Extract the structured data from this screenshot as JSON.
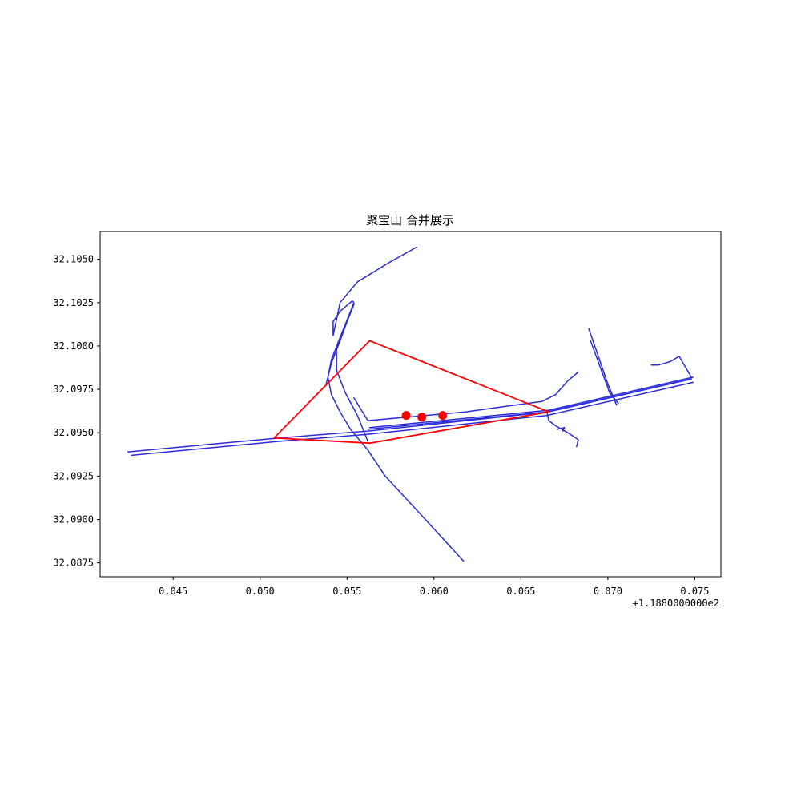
{
  "chart_data": {
    "type": "line",
    "title": "聚宝山 合并展示",
    "xlabel": "",
    "ylabel": "",
    "x_offset_label": "+1.1880000000e2",
    "xlim": [
      118.8408,
      118.8765
    ],
    "ylim": [
      32.0867,
      32.1066
    ],
    "x_ticks": [
      118.845,
      118.85,
      118.855,
      118.86,
      118.865,
      118.87,
      118.875
    ],
    "x_tick_labels": [
      "0.045",
      "0.050",
      "0.055",
      "0.060",
      "0.065",
      "0.070",
      "0.075"
    ],
    "y_ticks": [
      32.0875,
      32.09,
      32.0925,
      32.095,
      32.0975,
      32.1,
      32.1025,
      32.105
    ],
    "y_tick_labels": [
      "32.0875",
      "32.0900",
      "32.0925",
      "32.0950",
      "32.0975",
      "32.1000",
      "32.1025",
      "32.1050"
    ],
    "grid": false,
    "colors": {
      "roads": "#2b2bdd",
      "polygon": "#ff0000",
      "points": "#ff0000"
    },
    "roads": [
      {
        "x": [
          118.8424,
          118.8511,
          118.8562,
          118.8666,
          118.8748
        ],
        "y": [
          32.0939,
          32.0947,
          32.0951,
          32.0962,
          32.0981
        ]
      },
      {
        "x": [
          118.8426,
          118.851,
          118.8561,
          118.8665,
          118.8749
        ],
        "y": [
          32.0937,
          32.0945,
          32.0949,
          32.096,
          32.0979
        ]
      },
      {
        "x": [
          118.8563,
          118.8666,
          118.8749
        ],
        "y": [
          32.0953,
          32.0963,
          32.0982
        ]
      },
      {
        "x": [
          118.8562,
          118.8665,
          118.8748
        ],
        "y": [
          32.0952,
          32.0962,
          32.0981
        ]
      },
      {
        "x": [
          118.8617,
          118.8595,
          118.8572,
          118.8562,
          118.8552,
          118.8546,
          118.8541,
          118.8539,
          118.8541,
          118.8546,
          118.855,
          118.8554,
          118.8553,
          118.8546,
          118.8542,
          118.8542,
          118.8546,
          118.8556,
          118.8574,
          118.859
        ],
        "y": [
          32.0876,
          32.09,
          32.0925,
          32.094,
          32.0952,
          32.0962,
          32.0972,
          32.0982,
          32.0992,
          32.1005,
          32.1015,
          32.1025,
          32.1026,
          32.102,
          32.1014,
          32.1006,
          32.1025,
          32.1037,
          32.1048,
          32.1057
        ]
      },
      {
        "x": [
          118.8538,
          118.8541,
          118.8546,
          118.855,
          118.8554,
          118.8548,
          118.8544,
          118.8544,
          118.8549,
          118.8556,
          118.8562
        ],
        "y": [
          32.0978,
          32.099,
          32.1003,
          32.1014,
          32.1024,
          32.1009,
          32.0998,
          32.0986,
          32.0973,
          32.096,
          32.0945
        ]
      },
      {
        "x": [
          118.8554,
          118.8562,
          118.8618,
          118.8647,
          118.8662,
          118.867,
          118.8677,
          118.8683
        ],
        "y": [
          32.097,
          32.0957,
          32.0962,
          32.0966,
          32.0968,
          32.0972,
          32.098,
          32.0985
        ]
      },
      {
        "x": [
          118.8665,
          118.8666,
          118.867,
          118.8677,
          118.8683,
          118.8682
        ],
        "y": [
          32.0962,
          32.0957,
          32.0954,
          32.095,
          32.0946,
          32.0942
        ]
      },
      {
        "x": [
          118.8671,
          118.8675,
          118.8674
        ],
        "y": [
          32.0952,
          32.0953,
          32.0951
        ]
      },
      {
        "x": [
          118.8689,
          118.87,
          118.8705
        ],
        "y": [
          32.101,
          32.0978,
          32.0966
        ]
      },
      {
        "x": [
          118.869,
          118.8701,
          118.8706
        ],
        "y": [
          32.1003,
          32.0973,
          32.0967
        ]
      },
      {
        "x": [
          118.8725,
          118.8729,
          118.8736,
          118.8741,
          118.8748
        ],
        "y": [
          32.0989,
          32.0989,
          32.0991,
          32.0994,
          32.0982
        ]
      }
    ],
    "polygon": {
      "x": [
        118.8508,
        118.8563,
        118.8666,
        118.8563,
        118.8508
      ],
      "y": [
        32.0947,
        32.1003,
        32.0962,
        32.0944,
        32.0947
      ]
    },
    "points": {
      "x": [
        118.8584,
        118.8593,
        118.8605
      ],
      "y": [
        32.096,
        32.0959,
        32.096
      ]
    }
  }
}
